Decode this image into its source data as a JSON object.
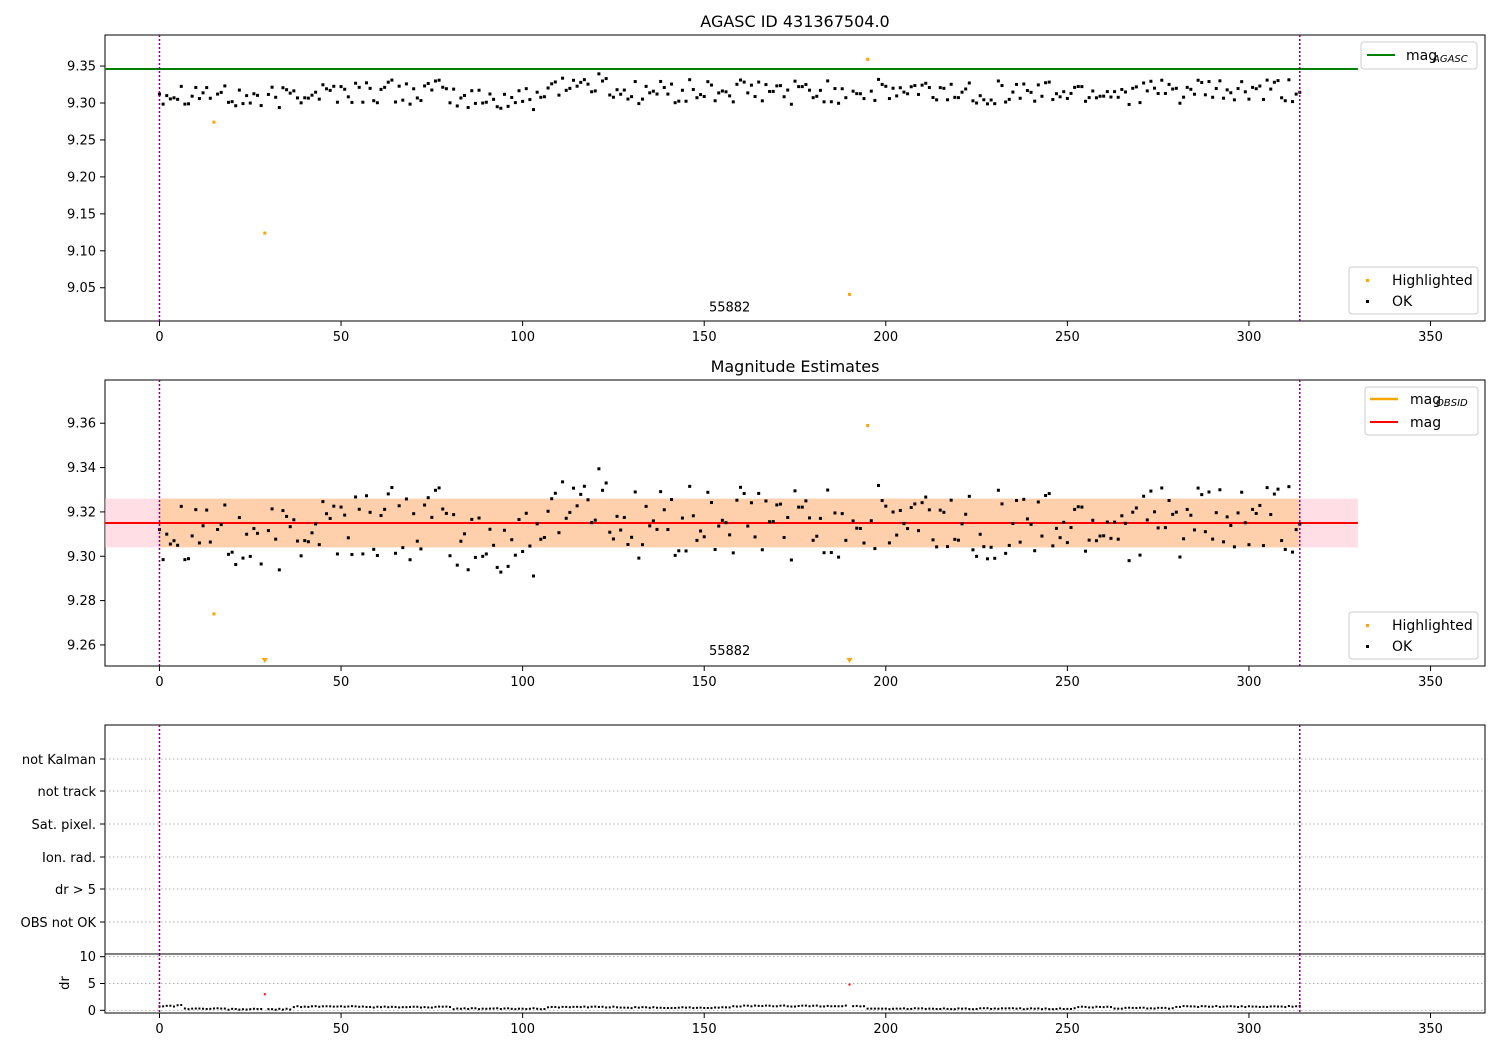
{
  "chart_data": [
    {
      "type": "scatter",
      "title": "AGASC ID 431367504.0",
      "ylabel": "",
      "xlim": [
        -15,
        365
      ],
      "ylim": [
        9.005,
        9.392
      ],
      "x_ticks": [
        0,
        50,
        100,
        150,
        200,
        250,
        300,
        350
      ],
      "y_ticks": [
        9.05,
        9.1,
        9.15,
        9.2,
        9.25,
        9.3,
        9.35
      ],
      "y_tick_labels": [
        "9.05",
        "9.10",
        "9.15",
        "9.20",
        "9.25",
        "9.30",
        "9.35"
      ],
      "reference_line": {
        "label": "mag",
        "sub": "AGASC",
        "value": 9.346,
        "color": "#008000",
        "x_end": 330
      },
      "obsid_bounds": [
        0,
        314
      ],
      "obsid_label": {
        "text": "55882",
        "x": 157,
        "y": 9.018
      },
      "legend_placement": [
        "top-right",
        "bottom-right"
      ],
      "series": [
        {
          "name": "Highlighted",
          "color": "#ffa500",
          "points": [
            [
              15,
              9.274
            ],
            [
              29,
              9.124
            ],
            [
              190,
              9.041
            ],
            [
              195,
              9.359
            ]
          ]
        },
        {
          "name": "OK",
          "color": "#000000",
          "points_ref": "shared_ok"
        }
      ]
    },
    {
      "type": "scatter",
      "title": "Magnitude Estimates",
      "ylabel": "",
      "xlim": [
        -15,
        365
      ],
      "ylim": [
        9.2505,
        9.3795
      ],
      "x_ticks": [
        0,
        50,
        100,
        150,
        200,
        250,
        300,
        350
      ],
      "y_ticks": [
        9.26,
        9.28,
        9.3,
        9.32,
        9.34,
        9.36
      ],
      "y_tick_labels": [
        "9.26",
        "9.28",
        "9.30",
        "9.32",
        "9.34",
        "9.36"
      ],
      "mag_line": {
        "label": "mag",
        "value": 9.315,
        "color": "#ff0000",
        "x_end": 330
      },
      "mag_obsid_legend": {
        "label": "mag",
        "sub": "OBSID",
        "color": "#ffa500"
      },
      "band_outer": [
        9.304,
        9.326
      ],
      "band_inner": [
        9.304,
        9.326
      ],
      "obsid_bounds": [
        0,
        314
      ],
      "obsid_label": {
        "text": "55882",
        "x": 157,
        "y": 9.2555
      },
      "legend_placement": [
        "top-right",
        "bottom-right"
      ],
      "series": [
        {
          "name": "Highlighted",
          "color": "#ffa500",
          "points": [
            [
              15,
              9.274
            ],
            [
              195,
              9.359
            ]
          ],
          "clipped_below": [
            29,
            190
          ]
        },
        {
          "name": "OK",
          "color": "#000000",
          "points_ref": "shared_ok"
        }
      ]
    },
    {
      "type": "table",
      "title": "",
      "categories": [
        "not Kalman",
        "not track",
        "Sat. pixel.",
        "Ion. rad.",
        "dr > 5",
        "OBS not OK"
      ],
      "xlim": [
        -15,
        365
      ],
      "obsid_bounds": [
        0,
        314
      ]
    },
    {
      "type": "scatter",
      "title": "",
      "ylabel": "dr",
      "xlim": [
        -15,
        365
      ],
      "ylim": [
        -0.5,
        10.5
      ],
      "x_ticks": [
        0,
        50,
        100,
        150,
        200,
        250,
        300,
        350
      ],
      "y_ticks": [
        0,
        5,
        10
      ],
      "y_tick_labels": [
        "0",
        "5",
        "10"
      ],
      "highlighted": [
        [
          29,
          3.0
        ],
        [
          190,
          4.8
        ]
      ],
      "dr_segments": [
        [
          0,
          4,
          0.8
        ],
        [
          5,
          6,
          1.0
        ],
        [
          7,
          18,
          0.3
        ],
        [
          19,
          28,
          0.2
        ],
        [
          30,
          36,
          0.2
        ],
        [
          37,
          58,
          0.7
        ],
        [
          59,
          80,
          0.6
        ],
        [
          81,
          106,
          0.3
        ],
        [
          107,
          125,
          0.6
        ],
        [
          126,
          157,
          0.5
        ],
        [
          158,
          168,
          0.8
        ],
        [
          169,
          194,
          0.8
        ],
        [
          195,
          213,
          0.3
        ],
        [
          214,
          252,
          0.3
        ],
        [
          253,
          262,
          0.6
        ],
        [
          263,
          279,
          0.4
        ],
        [
          280,
          314,
          0.7
        ]
      ],
      "obsid_bounds": [
        0,
        314
      ]
    }
  ],
  "shared_ok_params": {
    "n": 315,
    "mean": 9.315
  }
}
